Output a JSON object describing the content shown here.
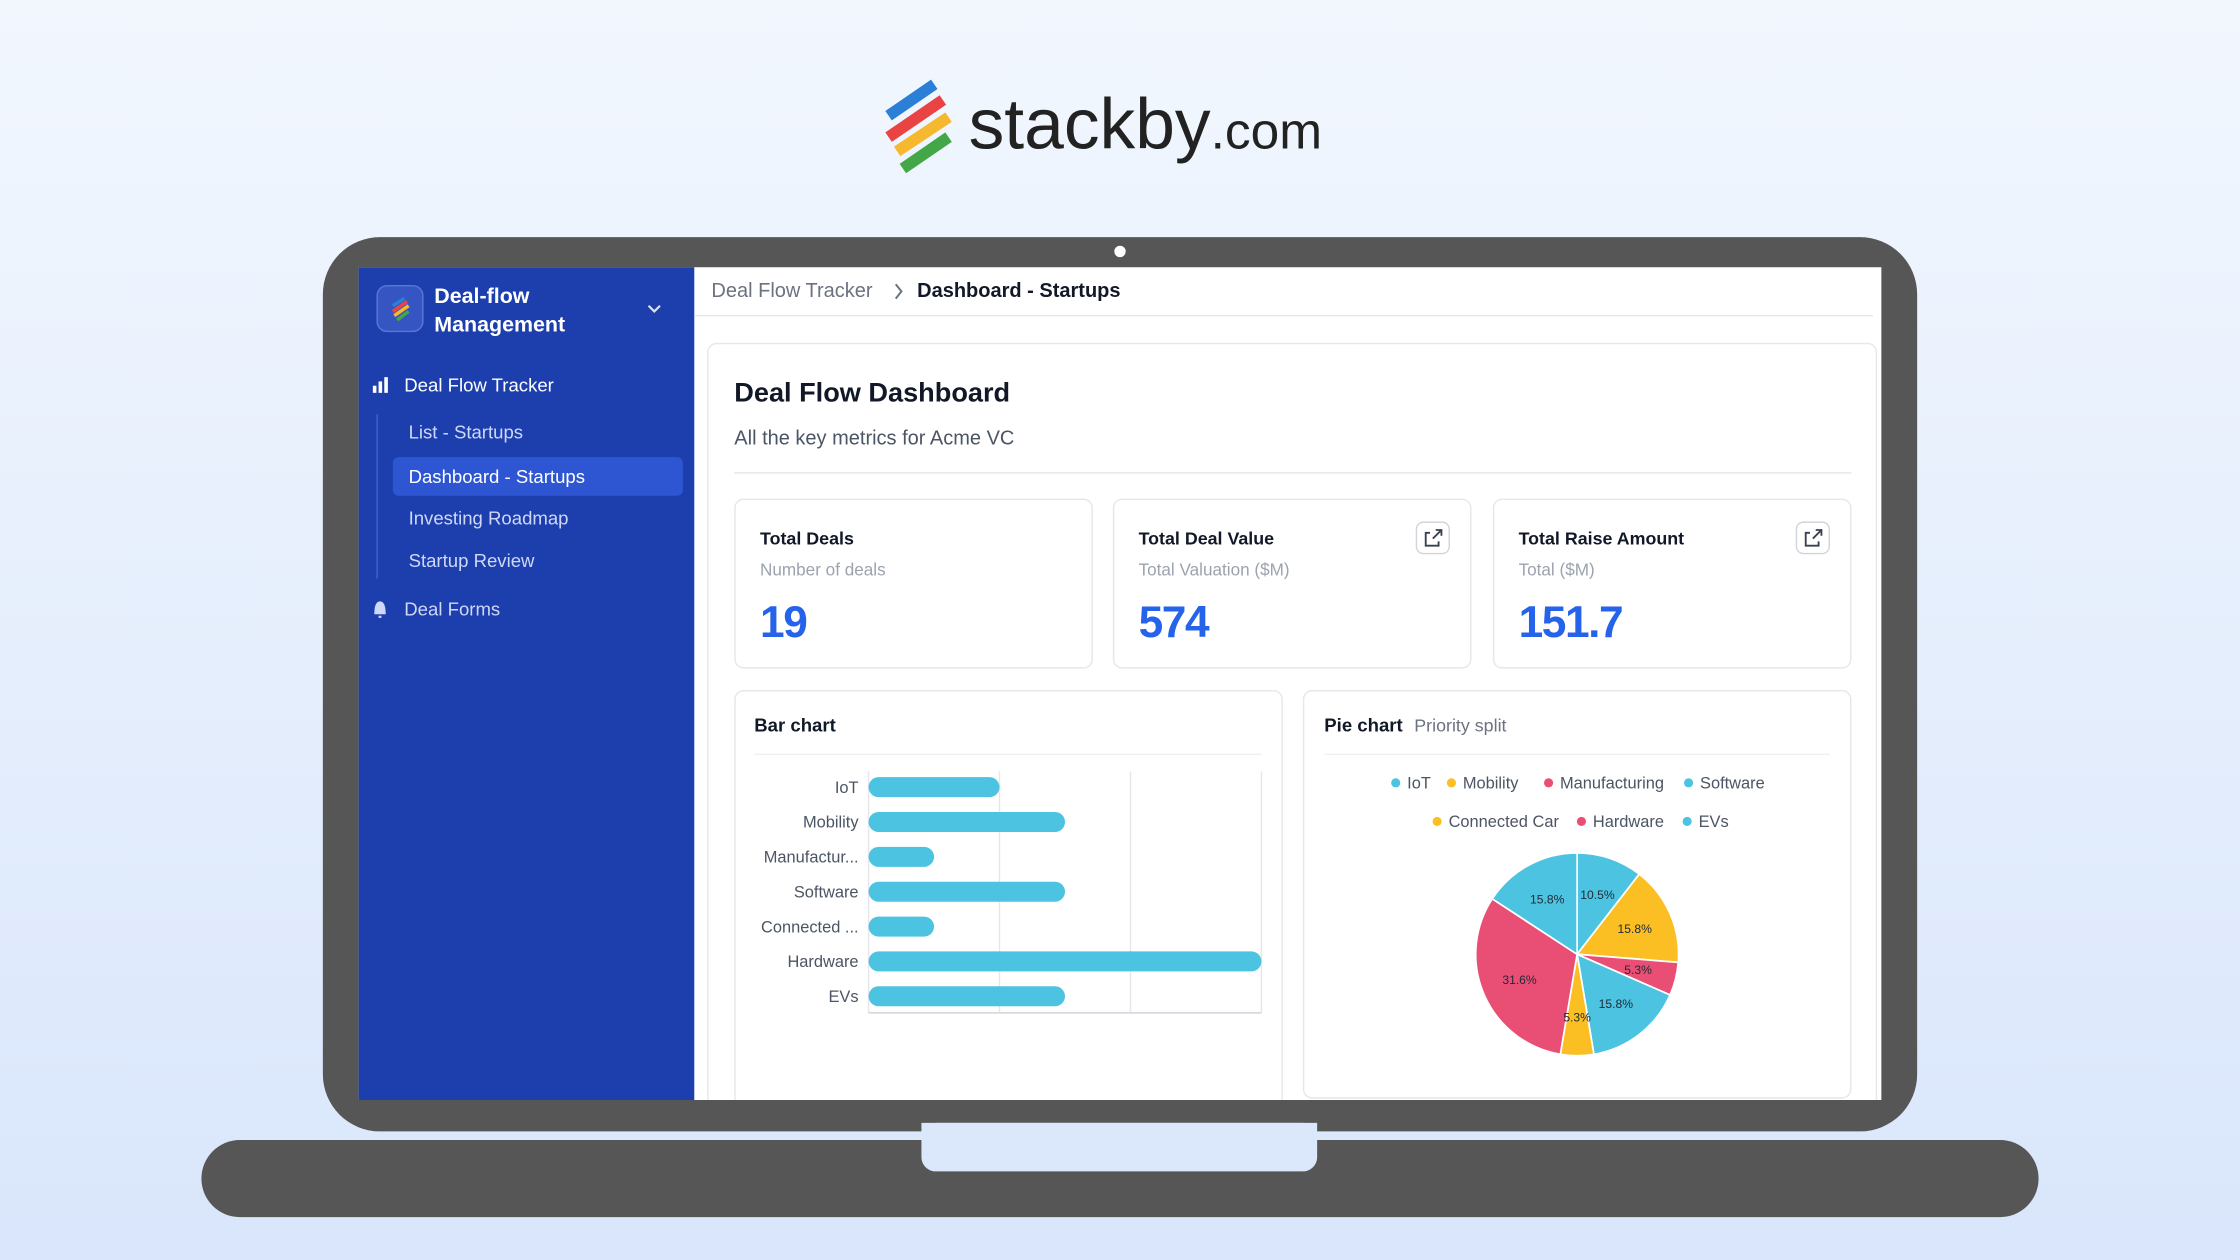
{
  "logo": {
    "name": "stackby",
    "suffix": ".com"
  },
  "sidebar": {
    "workspace_lines": [
      "Deal-flow",
      "Management"
    ],
    "nav": [
      {
        "label": "Deal Flow Tracker",
        "children": [
          "List - Startups",
          "Dashboard - Startups",
          "Investing Roadmap",
          "Startup Review"
        ]
      },
      {
        "label": "Deal Forms"
      }
    ]
  },
  "breadcrumb": [
    "Deal Flow Tracker",
    "Dashboard - Startups"
  ],
  "dashboard": {
    "title": "Deal Flow Dashboard",
    "subtitle": "All the key metrics for Acme VC",
    "stats": [
      {
        "title": "Total Deals",
        "subtitle": "Number of deals",
        "value": 19
      },
      {
        "title": "Total Deal Value",
        "subtitle": "Total Valuation ($M)",
        "value": 574
      },
      {
        "title": "Total Raise Amount",
        "subtitle": "Total ($M)",
        "value": 151.7
      }
    ]
  },
  "chart_data": [
    {
      "type": "bar",
      "title": "Bar chart",
      "orientation": "horizontal",
      "categories": [
        "IoT",
        "Mobility",
        "Manufactur...",
        "Software",
        "Connected ...",
        "Hardware",
        "EVs"
      ],
      "values": [
        2,
        3,
        1,
        3,
        1,
        6,
        3
      ],
      "color": "#4cc3e0",
      "xlim": [
        0,
        6
      ],
      "xticks": [
        0,
        2,
        4,
        6
      ],
      "grid": true
    },
    {
      "type": "pie",
      "title": "Pie chart",
      "subtitle": "Priority split",
      "categories": [
        "IoT",
        "Mobility",
        "Manufacturing",
        "Software",
        "Connected Car",
        "Hardware",
        "EVs"
      ],
      "values": [
        10.5,
        15.8,
        5.3,
        15.8,
        5.3,
        31.6,
        15.8
      ],
      "value_labels": [
        "10.5%",
        "15.8%",
        "5.3%",
        "15.8%",
        "5.3%",
        "31.6%",
        "15.8%"
      ],
      "colors": [
        "#4cc3e0",
        "#fbbf24",
        "#e94f74",
        "#4cc3e0",
        "#fbbf24",
        "#e94f74",
        "#4cc3e0"
      ]
    }
  ]
}
